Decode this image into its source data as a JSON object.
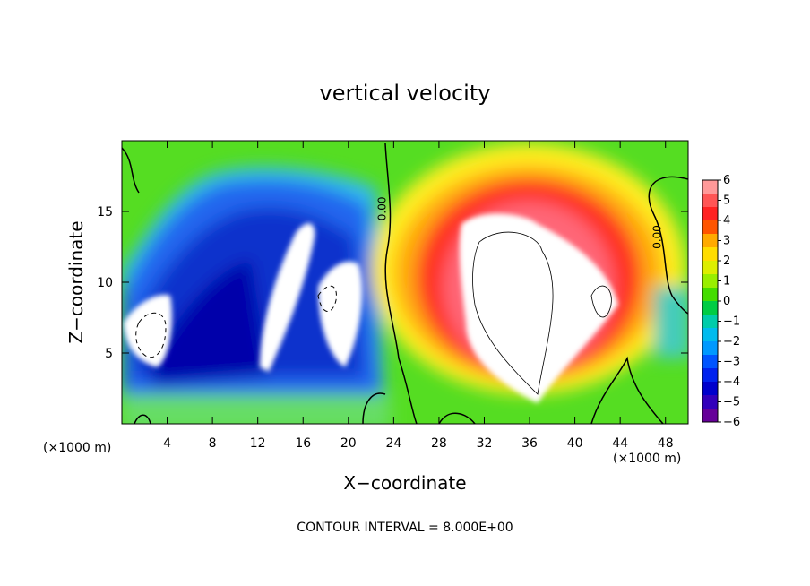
{
  "chart_data": {
    "type": "heatmap",
    "title": "vertical velocity",
    "xlabel": "X−coordinate",
    "ylabel": "Z−coordinate",
    "x_unit_label_left": "(×1000 m)",
    "x_unit_label_right": "(×1000 m)",
    "xlim": [
      0,
      50
    ],
    "ylim": [
      0,
      20
    ],
    "x_ticks": [
      4,
      8,
      12,
      16,
      20,
      24,
      28,
      32,
      36,
      40,
      44,
      48
    ],
    "x_tick_labels": [
      "4",
      "8",
      "12",
      "16",
      "20",
      "24",
      "28",
      "32",
      "36",
      "40",
      "44",
      "48"
    ],
    "y_ticks": [
      5,
      10,
      15
    ],
    "y_tick_labels": [
      "5",
      "10",
      "15"
    ],
    "colorbar": {
      "range": [
        -6,
        6
      ],
      "tick_values": [
        6,
        5,
        4,
        3,
        2,
        1,
        0,
        -1,
        -2,
        -3,
        -4,
        -5,
        -6
      ],
      "tick_labels": [
        "6",
        "5",
        "4",
        "3",
        "2",
        "1",
        "0",
        "−1",
        "−2",
        "−3",
        "−4",
        "−5",
        "−6"
      ]
    },
    "contour_labels": [
      {
        "text": "0.00",
        "x": 23.3,
        "y": 15.2
      },
      {
        "text": "0.00",
        "x": 47.6,
        "y": 13.2
      }
    ],
    "regions": [
      {
        "kind": "updraft",
        "x": 36,
        "y": 10,
        "rx": 9,
        "ry": 8,
        "value": 5
      },
      {
        "kind": "downdraft",
        "x": 11,
        "y": 10,
        "rx": 10,
        "ry": 8,
        "value": -5
      },
      {
        "kind": "downdraft",
        "x": 19,
        "y": 10,
        "rx": 4,
        "ry": 8,
        "value": -5
      }
    ],
    "footer": "CONTOUR INTERVAL = 8.000E+00"
  }
}
